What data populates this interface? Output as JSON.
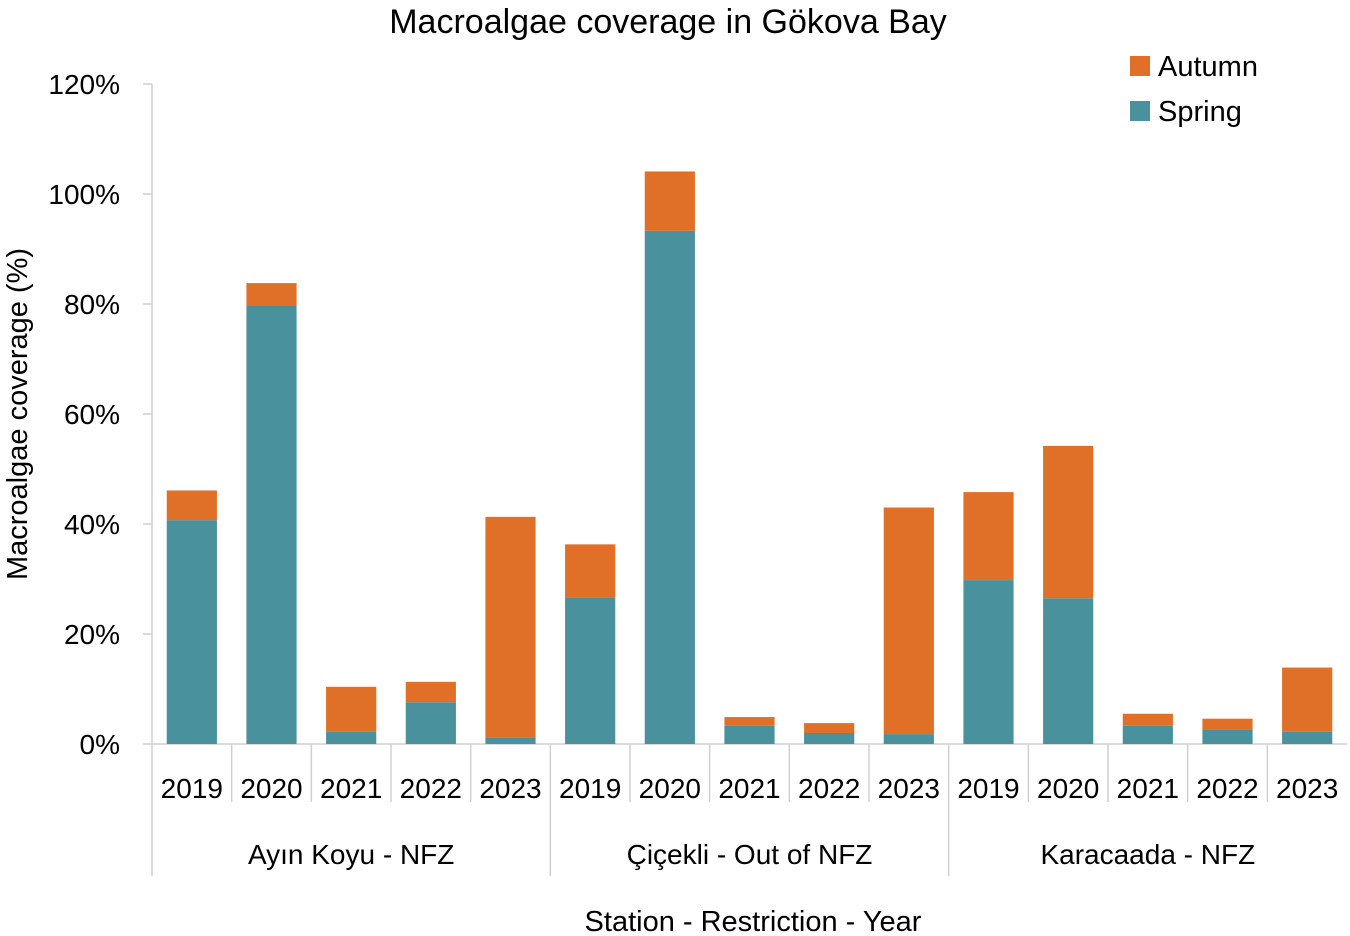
{
  "chart_data": {
    "type": "bar",
    "stacked": true,
    "title": "Macroalgae coverage in Gökova Bay",
    "xlabel": "Station - Restriction - Year",
    "ylabel": "Macroalgae coverage (%)",
    "ylim": [
      0,
      120
    ],
    "yticks": [
      "0%",
      "20%",
      "40%",
      "60%",
      "80%",
      "100%",
      "120%"
    ],
    "ytick_values": [
      0,
      20,
      40,
      60,
      80,
      100,
      120
    ],
    "legend_position": "top-right",
    "groups": [
      {
        "label": "Ayın Koyu - NFZ",
        "years": [
          "2019",
          "2020",
          "2021",
          "2022",
          "2023"
        ]
      },
      {
        "label": "Çiçekli - Out of NFZ",
        "years": [
          "2019",
          "2020",
          "2021",
          "2022",
          "2023"
        ]
      },
      {
        "label": "Karacaada - NFZ",
        "years": [
          "2019",
          "2020",
          "2021",
          "2022",
          "2023"
        ]
      }
    ],
    "series": [
      {
        "name": "Spring",
        "color": "#4a919e",
        "values": [
          40.7,
          79.8,
          2.2,
          7.6,
          1.1,
          26.7,
          93.3,
          3.3,
          2.0,
          1.8,
          29.8,
          26.5,
          3.3,
          2.7,
          2.2
        ]
      },
      {
        "name": "Autumn",
        "color": "#e07028",
        "values": [
          5.4,
          4.0,
          8.2,
          3.7,
          40.2,
          9.6,
          10.8,
          1.6,
          1.8,
          41.2,
          16.0,
          27.7,
          2.2,
          1.9,
          11.7
        ]
      }
    ],
    "legend": [
      {
        "name": "Autumn",
        "color": "#e07028"
      },
      {
        "name": "Spring",
        "color": "#4a919e"
      }
    ]
  }
}
